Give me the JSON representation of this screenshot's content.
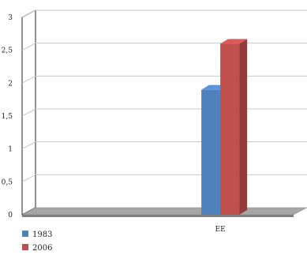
{
  "chart_data": {
    "type": "bar",
    "categories": [
      "EE"
    ],
    "series": [
      {
        "name": "1983",
        "values": [
          1.9
        ],
        "color": "#4f81bd"
      },
      {
        "name": "2006",
        "values": [
          2.6
        ],
        "color": "#c0504d"
      }
    ],
    "ylim": [
      0,
      3
    ],
    "yticks": [
      "0",
      "0,5",
      "1",
      "1,5",
      "2",
      "2,5",
      "3"
    ],
    "grid": true,
    "legend_position": "bottom-left",
    "style": "3d"
  }
}
